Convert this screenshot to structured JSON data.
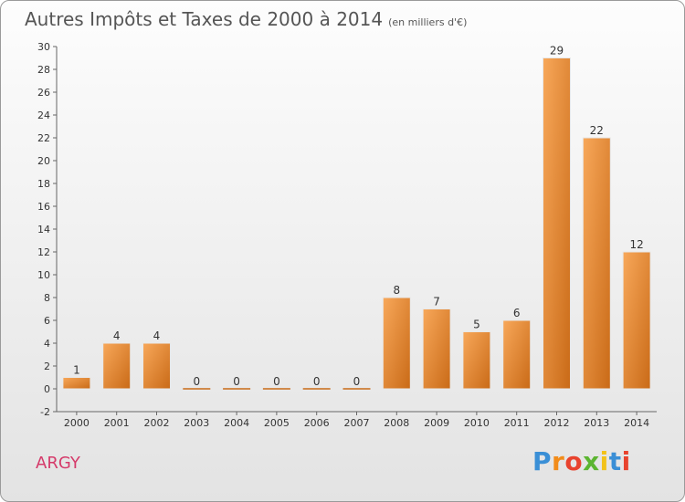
{
  "title": "Autres Impôts et Taxes de 2000 à 2014",
  "subtitle": "(en milliers d'€)",
  "commune": "ARGY",
  "logo": {
    "letters": [
      "P",
      "r",
      "o",
      "x",
      "i",
      "t",
      "i"
    ],
    "colors": [
      "#3a8fd6",
      "#f28c1a",
      "#e8432e",
      "#5cb531",
      "#f2c21a",
      "#3a8fd6",
      "#e8432e"
    ]
  },
  "colors": {
    "bar_light": "#f8a85a",
    "bar_dark": "#c96a17",
    "text": "#555555"
  },
  "chart_data": {
    "type": "bar",
    "categories": [
      "2000",
      "2001",
      "2002",
      "2003",
      "2004",
      "2005",
      "2006",
      "2007",
      "2008",
      "2009",
      "2010",
      "2011",
      "2012",
      "2013",
      "2014"
    ],
    "values": [
      1,
      4,
      4,
      0,
      0,
      0,
      0,
      0,
      8,
      7,
      5,
      6,
      29,
      22,
      12
    ],
    "title": "Autres Impôts et Taxes de 2000 à 2014",
    "subtitle": "(en milliers d'€)",
    "xlabel": "",
    "ylabel": "",
    "ylim": [
      -2,
      30
    ],
    "yticks": [
      -2,
      0,
      2,
      4,
      6,
      8,
      10,
      12,
      14,
      16,
      18,
      20,
      22,
      24,
      26,
      28,
      30
    ],
    "grid": false,
    "legend": "none"
  }
}
